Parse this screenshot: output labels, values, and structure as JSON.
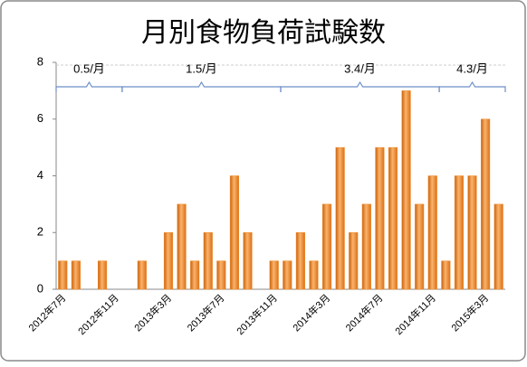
{
  "chart_data": {
    "type": "bar",
    "title": "月別食物負荷試験数",
    "categories": [
      "2012年7月",
      null,
      null,
      null,
      "2012年11月",
      null,
      null,
      null,
      "2013年3月",
      null,
      null,
      null,
      "2013年7月",
      null,
      null,
      null,
      "2013年11月",
      null,
      null,
      null,
      "2014年3月",
      null,
      null,
      null,
      "2014年7月",
      null,
      null,
      null,
      "2014年11月",
      null,
      null,
      null,
      "2015年3月",
      null
    ],
    "values": [
      1,
      1,
      0,
      1,
      0,
      0,
      1,
      0,
      2,
      3,
      1,
      2,
      1,
      4,
      2,
      0,
      1,
      1,
      2,
      1,
      3,
      5,
      2,
      3,
      5,
      5,
      7,
      3,
      4,
      1,
      4,
      4,
      6,
      3
    ],
    "color": "#f08a24",
    "ylim": [
      0,
      8
    ],
    "yticks": [
      0,
      2,
      4,
      6,
      8
    ],
    "annotations": [
      "0.5/月",
      "1.5/月",
      "3.4/月",
      "4.3/月"
    ]
  }
}
